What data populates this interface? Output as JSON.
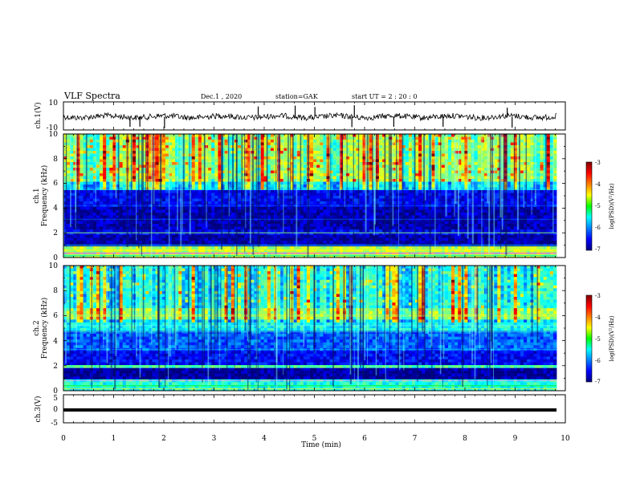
{
  "header": {
    "title": "VLF Spectra",
    "date": "Dec.1 , 2020",
    "station": "station=GAK",
    "start": "start UT =  2 : 20 : 0"
  },
  "chart_data": [
    {
      "type": "line",
      "panel": "ch1-waveform",
      "ylabel": "ch.1(V)",
      "ylim": [
        -10,
        10
      ],
      "yticks": [
        "10",
        "-10"
      ],
      "xlim": [
        0,
        10
      ]
    },
    {
      "type": "heatmap",
      "panel": "ch1-spectrogram",
      "ylabel_line1": "ch.1",
      "ylabel_line2": "Frequency (kHz)",
      "ylim": [
        0,
        10
      ],
      "yticks": [
        "0",
        "2",
        "4",
        "6",
        "8",
        "10"
      ],
      "xlim": [
        0,
        10
      ],
      "colorbar": {
        "label": "log(PSD)(V²/Hz)",
        "range": [
          -7,
          -3
        ],
        "ticks": [
          "-3",
          "-4",
          "-5",
          "-6",
          "-7"
        ]
      }
    },
    {
      "type": "heatmap",
      "panel": "ch2-spectrogram",
      "ylabel_line1": "ch.2",
      "ylabel_line2": "Frequency (kHz)",
      "ylim": [
        0,
        10
      ],
      "yticks": [
        "0",
        "2",
        "4",
        "6",
        "8",
        "10"
      ],
      "xlim": [
        0,
        10
      ],
      "colorbar": {
        "label": "log(PSD)(V²/Hz)",
        "range": [
          -7,
          -3
        ],
        "ticks": [
          "-3",
          "-4",
          "-5",
          "-6",
          "-7"
        ]
      }
    },
    {
      "type": "line",
      "panel": "ch3-waveform",
      "ylabel": "ch.3(V)",
      "ylim": [
        -5,
        5
      ],
      "yticks": [
        "5",
        "0",
        "-5"
      ],
      "xlim": [
        0,
        10
      ],
      "xlabel": "Time (min)",
      "xticks": [
        "0",
        "1",
        "2",
        "3",
        "4",
        "5",
        "6",
        "7",
        "8",
        "9",
        "10"
      ]
    }
  ]
}
